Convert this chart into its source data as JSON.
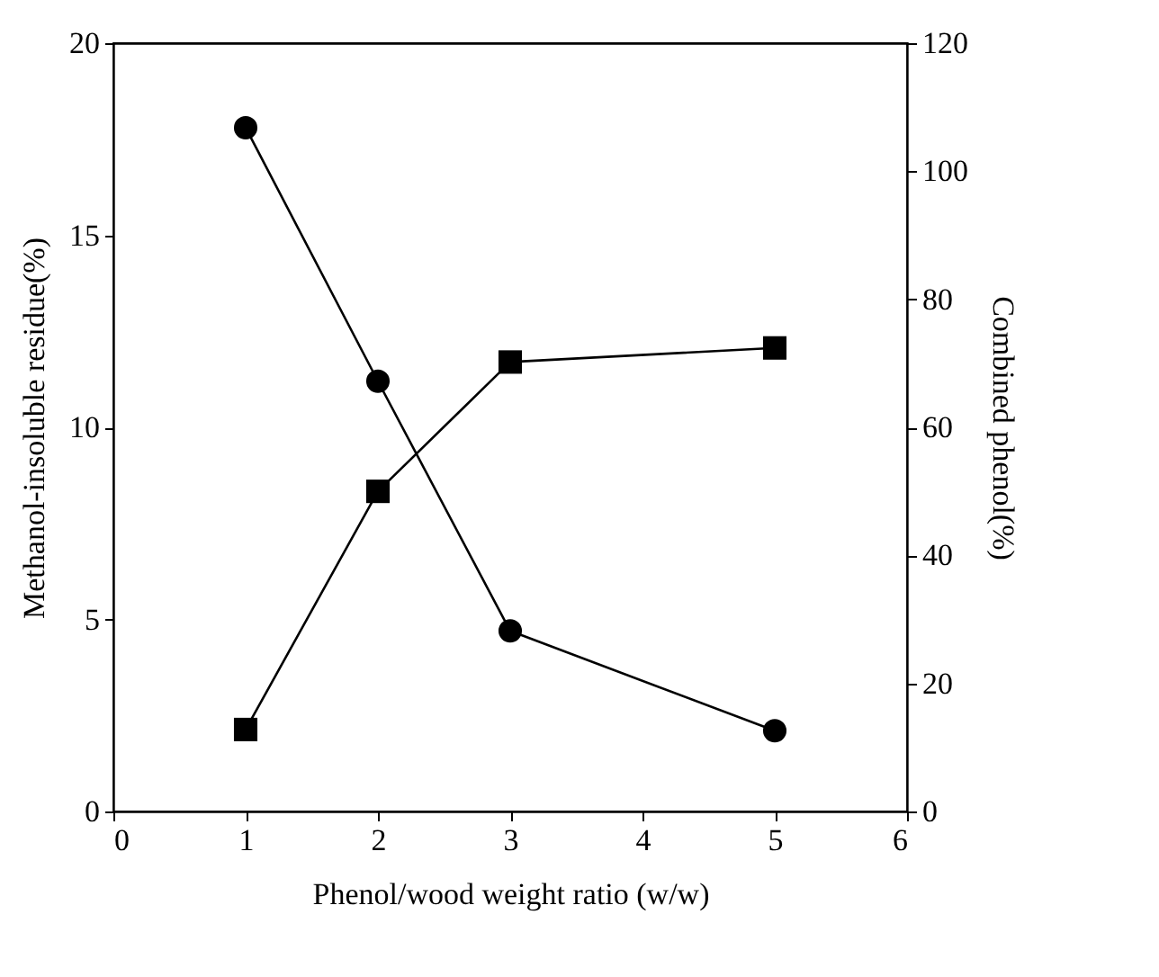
{
  "chart_data": {
    "type": "line",
    "xlabel": "Phenol/wood weight ratio (w/w)",
    "ylabel": "Methanol-insoluble residue(%)",
    "y2label": "Combined phenol(%)",
    "x": [
      1,
      2,
      3,
      5
    ],
    "series": [
      {
        "color": "#000000",
        "marker": "circle",
        "values": [
          17.8,
          11.2,
          4.7,
          2.1
        ]
      },
      {
        "color": "#000000",
        "marker": "square",
        "axis": "y2",
        "values": [
          12.8,
          50,
          70.2,
          72.4
        ]
      }
    ],
    "xlim": [
      0,
      6
    ],
    "xticks": [
      0,
      1,
      2,
      3,
      4,
      5,
      6
    ],
    "ylim": [
      0,
      20
    ],
    "yticks": [
      0,
      5,
      10,
      15,
      20
    ],
    "y2lim": [
      0,
      120
    ],
    "y2ticks": [
      0,
      20,
      40,
      60,
      80,
      100,
      120
    ],
    "grid": false
  }
}
